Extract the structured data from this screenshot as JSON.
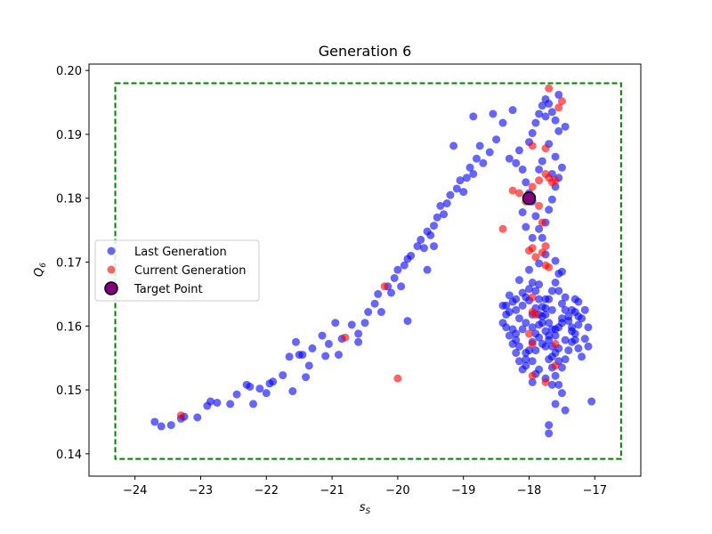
{
  "chart_data": {
    "type": "scatter",
    "title": "Generation 6",
    "xlabel": "s_S",
    "ylabel": "Q_6",
    "xlim": [
      -24.7,
      -16.3
    ],
    "ylim": [
      0.1365,
      0.201
    ],
    "xticks": [
      -24,
      -23,
      -22,
      -21,
      -20,
      -19,
      -18,
      -17
    ],
    "yticks": [
      0.14,
      0.15,
      0.16,
      0.17,
      0.18,
      0.19,
      0.2
    ],
    "xtick_labels": [
      "−24",
      "−23",
      "−22",
      "−21",
      "−20",
      "−19",
      "−18",
      "−17"
    ],
    "ytick_labels": [
      "0.14",
      "0.15",
      "0.16",
      "0.17",
      "0.18",
      "0.19",
      "0.20"
    ],
    "grid": false,
    "legend_position": "center-left",
    "colors": {
      "last": "#0000ff",
      "current": "#ff0000",
      "target": "#800080",
      "bounds": "#008000"
    },
    "bounds_box": {
      "x": [
        -24.3,
        -16.6
      ],
      "y": [
        0.1392,
        0.198
      ],
      "style": "dashed"
    },
    "series": [
      {
        "name": "Last Generation",
        "color": "#0000ff",
        "alpha": 0.6,
        "points": [
          [
            -23.7,
            0.145
          ],
          [
            -23.6,
            0.1443
          ],
          [
            -23.45,
            0.1445
          ],
          [
            -23.3,
            0.1455
          ],
          [
            -23.05,
            0.1457
          ],
          [
            -22.9,
            0.1475
          ],
          [
            -22.85,
            0.1482
          ],
          [
            -22.75,
            0.148
          ],
          [
            -22.55,
            0.1478
          ],
          [
            -22.45,
            0.1493
          ],
          [
            -22.25,
            0.1505
          ],
          [
            -22.2,
            0.1478
          ],
          [
            -22.1,
            0.1502
          ],
          [
            -22.0,
            0.1495
          ],
          [
            -21.95,
            0.151
          ],
          [
            -21.9,
            0.1513
          ],
          [
            -21.75,
            0.1523
          ],
          [
            -21.65,
            0.1552
          ],
          [
            -21.55,
            0.1575
          ],
          [
            -21.5,
            0.1555
          ],
          [
            -21.45,
            0.1555
          ],
          [
            -21.4,
            0.152
          ],
          [
            -21.35,
            0.1538
          ],
          [
            -21.3,
            0.1565
          ],
          [
            -21.15,
            0.1585
          ],
          [
            -21.1,
            0.1553
          ],
          [
            -21.05,
            0.1572
          ],
          [
            -20.95,
            0.1605
          ],
          [
            -20.85,
            0.158
          ],
          [
            -20.7,
            0.1602
          ],
          [
            -20.6,
            0.1588
          ],
          [
            -20.5,
            0.1605
          ],
          [
            -20.45,
            0.1622
          ],
          [
            -20.35,
            0.1635
          ],
          [
            -20.3,
            0.165
          ],
          [
            -20.15,
            0.1662
          ],
          [
            -20.1,
            0.1652
          ],
          [
            -20.05,
            0.1675
          ],
          [
            -20.0,
            0.1688
          ],
          [
            -19.95,
            0.1662
          ],
          [
            -19.9,
            0.1695
          ],
          [
            -19.85,
            0.1705
          ],
          [
            -19.8,
            0.171
          ],
          [
            -19.7,
            0.1725
          ],
          [
            -19.65,
            0.1735
          ],
          [
            -19.6,
            0.1722
          ],
          [
            -19.55,
            0.1748
          ],
          [
            -19.5,
            0.1742
          ],
          [
            -19.45,
            0.1757
          ],
          [
            -19.4,
            0.177
          ],
          [
            -19.35,
            0.1788
          ],
          [
            -19.3,
            0.1775
          ],
          [
            -19.25,
            0.1792
          ],
          [
            -19.2,
            0.1805
          ],
          [
            -19.1,
            0.1815
          ],
          [
            -19.05,
            0.1828
          ],
          [
            -19.0,
            0.181
          ],
          [
            -18.95,
            0.1832
          ],
          [
            -18.9,
            0.1848
          ],
          [
            -18.85,
            0.1838
          ],
          [
            -18.8,
            0.1862
          ],
          [
            -18.75,
            0.1882
          ],
          [
            -18.7,
            0.1855
          ],
          [
            -18.6,
            0.1872
          ],
          [
            -18.5,
            0.1892
          ],
          [
            -18.4,
            0.1918
          ],
          [
            -18.55,
            0.1932
          ],
          [
            -18.85,
            0.1928
          ],
          [
            -19.15,
            0.1882
          ],
          [
            -19.45,
            0.1725
          ],
          [
            -19.55,
            0.1688
          ],
          [
            -19.85,
            0.1608
          ],
          [
            -20.25,
            0.1622
          ],
          [
            -20.6,
            0.1575
          ],
          [
            -20.9,
            0.1555
          ],
          [
            -21.6,
            0.1498
          ],
          [
            -22.3,
            0.1508
          ],
          [
            -23.25,
            0.1458
          ],
          [
            -18.25,
            0.1938
          ],
          [
            -18.3,
            0.1862
          ],
          [
            -18.2,
            0.1855
          ],
          [
            -18.1,
            0.1845
          ],
          [
            -18.05,
            0.1825
          ],
          [
            -18.0,
            0.1808
          ],
          [
            -17.95,
            0.1795
          ],
          [
            -17.9,
            0.1772
          ],
          [
            -17.85,
            0.1752
          ],
          [
            -17.8,
            0.1738
          ],
          [
            -17.75,
            0.1762
          ],
          [
            -17.7,
            0.1782
          ],
          [
            -17.65,
            0.1798
          ],
          [
            -17.6,
            0.1818
          ],
          [
            -17.55,
            0.1832
          ],
          [
            -17.5,
            0.1848
          ],
          [
            -17.6,
            0.1865
          ],
          [
            -17.7,
            0.1885
          ],
          [
            -17.55,
            0.1905
          ],
          [
            -17.6,
            0.1922
          ],
          [
            -17.65,
            0.1935
          ],
          [
            -17.7,
            0.1948
          ],
          [
            -17.75,
            0.1955
          ],
          [
            -17.8,
            0.1945
          ],
          [
            -17.85,
            0.1932
          ],
          [
            -17.9,
            0.1918
          ],
          [
            -17.95,
            0.1902
          ],
          [
            -18.0,
            0.1888
          ],
          [
            -18.15,
            0.1875
          ],
          [
            -17.55,
            0.1962
          ],
          [
            -17.75,
            0.1928
          ],
          [
            -17.45,
            0.1912
          ],
          [
            -17.8,
            0.1858
          ],
          [
            -17.85,
            0.1845
          ],
          [
            -17.65,
            0.1838
          ],
          [
            -18.1,
            0.1778
          ],
          [
            -18.05,
            0.1755
          ],
          [
            -17.95,
            0.1738
          ],
          [
            -17.75,
            0.1712
          ],
          [
            -17.6,
            0.1702
          ],
          [
            -17.5,
            0.1685
          ],
          [
            -18.3,
            0.1648
          ],
          [
            -18.25,
            0.1638
          ],
          [
            -18.2,
            0.1625
          ],
          [
            -18.15,
            0.1612
          ],
          [
            -18.1,
            0.1632
          ],
          [
            -18.05,
            0.1645
          ],
          [
            -18.0,
            0.1658
          ],
          [
            -17.95,
            0.1668
          ],
          [
            -17.9,
            0.1655
          ],
          [
            -17.85,
            0.1642
          ],
          [
            -17.8,
            0.163
          ],
          [
            -17.75,
            0.1618
          ],
          [
            -17.7,
            0.1605
          ],
          [
            -17.65,
            0.1595
          ],
          [
            -17.6,
            0.1585
          ],
          [
            -17.55,
            0.1598
          ],
          [
            -17.5,
            0.1612
          ],
          [
            -17.45,
            0.1625
          ],
          [
            -17.4,
            0.1608
          ],
          [
            -17.35,
            0.1592
          ],
          [
            -17.3,
            0.1578
          ],
          [
            -17.25,
            0.1565
          ],
          [
            -17.2,
            0.1552
          ],
          [
            -18.35,
            0.1598
          ],
          [
            -18.3,
            0.1585
          ],
          [
            -18.25,
            0.1572
          ],
          [
            -18.2,
            0.1558
          ],
          [
            -18.15,
            0.1545
          ],
          [
            -18.1,
            0.1532
          ],
          [
            -18.05,
            0.1548
          ],
          [
            -18.0,
            0.1562
          ],
          [
            -17.95,
            0.1575
          ],
          [
            -17.9,
            0.1588
          ],
          [
            -17.85,
            0.1602
          ],
          [
            -17.8,
            0.1615
          ],
          [
            -17.75,
            0.1628
          ],
          [
            -17.7,
            0.1642
          ],
          [
            -17.65,
            0.1655
          ],
          [
            -17.6,
            0.1668
          ],
          [
            -17.55,
            0.1682
          ],
          [
            -17.85,
            0.1698
          ],
          [
            -18.0,
            0.1688
          ],
          [
            -18.15,
            0.1672
          ],
          [
            -17.7,
            0.1548
          ],
          [
            -17.65,
            0.1535
          ],
          [
            -17.6,
            0.1522
          ],
          [
            -17.55,
            0.1508
          ],
          [
            -17.5,
            0.1495
          ],
          [
            -17.6,
            0.1478
          ],
          [
            -17.45,
            0.1468
          ],
          [
            -17.7,
            0.1432
          ],
          [
            -17.7,
            0.1445
          ],
          [
            -17.9,
            0.1525
          ],
          [
            -17.95,
            0.1512
          ],
          [
            -18.05,
            0.1538
          ],
          [
            -17.2,
            0.1612
          ],
          [
            -17.15,
            0.1625
          ],
          [
            -17.1,
            0.1598
          ],
          [
            -17.3,
            0.1642
          ],
          [
            -17.35,
            0.1625
          ],
          [
            -17.25,
            0.1638
          ],
          [
            -18.4,
            0.1632
          ],
          [
            -18.35,
            0.1618
          ],
          [
            -18.4,
            0.1605
          ],
          [
            -18.25,
            0.1595
          ],
          [
            -18.2,
            0.1588
          ],
          [
            -18.1,
            0.1595
          ],
          [
            -18.05,
            0.1605
          ],
          [
            -17.95,
            0.1618
          ],
          [
            -17.9,
            0.1628
          ],
          [
            -17.85,
            0.1618
          ],
          [
            -17.8,
            0.1605
          ],
          [
            -17.75,
            0.1592
          ],
          [
            -17.7,
            0.1578
          ],
          [
            -17.65,
            0.1568
          ],
          [
            -17.6,
            0.1558
          ],
          [
            -17.55,
            0.1545
          ],
          [
            -17.5,
            0.1535
          ],
          [
            -17.45,
            0.1548
          ],
          [
            -17.4,
            0.1562
          ],
          [
            -17.35,
            0.1575
          ],
          [
            -17.3,
            0.1588
          ],
          [
            -17.25,
            0.1602
          ],
          [
            -17.15,
            0.158
          ],
          [
            -17.1,
            0.1568
          ],
          [
            -17.05,
            0.1482
          ],
          [
            -17.5,
            0.1635
          ],
          [
            -17.45,
            0.1645
          ],
          [
            -17.55,
            0.1655
          ],
          [
            -17.65,
            0.1625
          ],
          [
            -17.75,
            0.1642
          ],
          [
            -17.85,
            0.1665
          ],
          [
            -18.0,
            0.164
          ],
          [
            -18.1,
            0.1652
          ],
          [
            -18.2,
            0.1642
          ],
          [
            -18.3,
            0.1622
          ],
          [
            -18.35,
            0.1632
          ],
          [
            -17.65,
            0.1508
          ],
          [
            -17.75,
            0.1518
          ],
          [
            -17.85,
            0.1532
          ],
          [
            -17.95,
            0.1545
          ],
          [
            -18.05,
            0.1558
          ],
          [
            -18.15,
            0.1568
          ],
          [
            -18.2,
            0.1578
          ],
          [
            -17.9,
            0.1562
          ],
          [
            -17.8,
            0.1572
          ],
          [
            -17.7,
            0.1585
          ],
          [
            -17.6,
            0.1595
          ],
          [
            -17.5,
            0.1605
          ],
          [
            -17.4,
            0.1615
          ],
          [
            -17.3,
            0.1622
          ],
          [
            -17.95,
            0.1598
          ],
          [
            -17.85,
            0.1582
          ],
          [
            -17.75,
            0.1568
          ],
          [
            -17.65,
            0.1552
          ],
          [
            -17.55,
            0.1565
          ],
          [
            -17.45,
            0.1578
          ],
          [
            -17.35,
            0.1598
          ],
          [
            -17.25,
            0.1615
          ]
        ]
      },
      {
        "name": "Current Generation",
        "color": "#ff0000",
        "alpha": 0.6,
        "points": [
          [
            -23.3,
            0.146
          ],
          [
            -20.8,
            0.1582
          ],
          [
            -20.2,
            0.1662
          ],
          [
            -20.0,
            0.1518
          ],
          [
            -18.4,
            0.1752
          ],
          [
            -18.25,
            0.1812
          ],
          [
            -18.15,
            0.1808
          ],
          [
            -18.05,
            0.1795
          ],
          [
            -18.0,
            0.1802
          ],
          [
            -17.95,
            0.1818
          ],
          [
            -17.85,
            0.1828
          ],
          [
            -17.75,
            0.1838
          ],
          [
            -17.7,
            0.1832
          ],
          [
            -17.65,
            0.1825
          ],
          [
            -17.6,
            0.1828
          ],
          [
            -17.85,
            0.1788
          ],
          [
            -17.8,
            0.1762
          ],
          [
            -17.75,
            0.1725
          ],
          [
            -17.8,
            0.1715
          ],
          [
            -17.9,
            0.1708
          ],
          [
            -17.95,
            0.1722
          ],
          [
            -18.0,
            0.1718
          ],
          [
            -17.75,
            0.1695
          ],
          [
            -17.7,
            0.1692
          ],
          [
            -17.95,
            0.1882
          ],
          [
            -17.75,
            0.1878
          ],
          [
            -17.7,
            0.1972
          ],
          [
            -17.55,
            0.1942
          ],
          [
            -17.5,
            0.1952
          ],
          [
            -17.95,
            0.1645
          ],
          [
            -17.95,
            0.1622
          ],
          [
            -17.9,
            0.1618
          ],
          [
            -18.0,
            0.1588
          ],
          [
            -17.95,
            0.1572
          ],
          [
            -17.6,
            0.1572
          ],
          [
            -17.6,
            0.1538
          ],
          [
            -17.95,
            0.1522
          ],
          [
            -17.75,
            0.1512
          ]
        ]
      },
      {
        "name": "Target Point",
        "color": "#800080",
        "alpha": 1.0,
        "points": [
          [
            -18.0,
            0.18
          ]
        ]
      }
    ]
  }
}
